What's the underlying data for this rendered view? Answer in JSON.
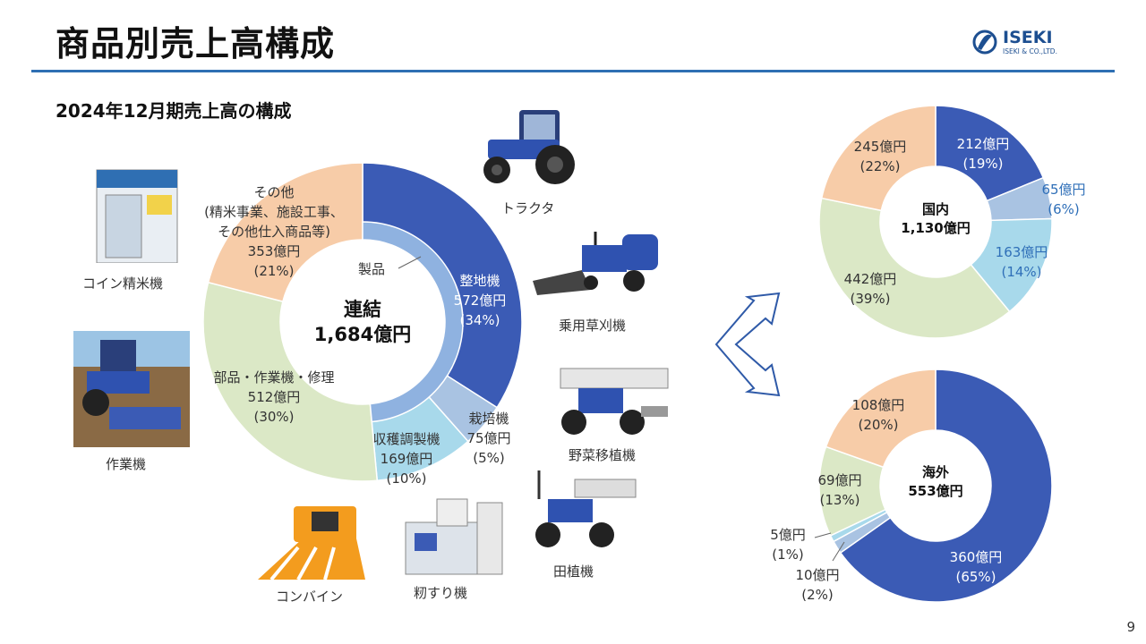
{
  "title": "商品別売上高構成",
  "subtitle": "2024年12月期売上高の構成",
  "logo": {
    "name": "ISEKI",
    "sub": "ISEKI & CO.,LTD."
  },
  "page_number": "9",
  "colors": {
    "dark_blue": "#3b5bb5",
    "light_blue": "#a9c3e2",
    "cyan": "#a8d9eb",
    "green": "#dbe8c6",
    "peach": "#f7cca8",
    "inner_ring": "#8fb2e0",
    "title_rule": "#2e6fb3"
  },
  "chart_data": [
    {
      "type": "donut",
      "id": "consolidated",
      "center": [
        "連結",
        "1,684億円"
      ],
      "segments": [
        {
          "name": "整地機",
          "value": 572,
          "pct": "34%",
          "amount_label": "572億円",
          "pct_label": "(34%)"
        },
        {
          "name": "栽培機",
          "value": 75,
          "pct": "5%",
          "amount_label": "75億円",
          "pct_label": "(5%)"
        },
        {
          "name": "収穫調製機",
          "value": 169,
          "pct": "10%",
          "amount_label": "169億円",
          "pct_label": "(10%)"
        },
        {
          "name": "部品・作業機・修理",
          "value": 512,
          "pct": "30%",
          "amount_label": "512億円",
          "pct_label": "(30%)"
        },
        {
          "name": "その他",
          "sub": [
            "(精米事業、施設工事、",
            "その他仕入商品等)"
          ],
          "value": 353,
          "pct": "21%",
          "amount_label": "353億円",
          "pct_label": "(21%)"
        }
      ],
      "inner_ring_label": "製品"
    },
    {
      "type": "donut",
      "id": "domestic",
      "center": [
        "国内",
        "1,130億円"
      ],
      "segments": [
        {
          "value": 212,
          "amount_label": "212億円",
          "pct_label": "(19%)"
        },
        {
          "value": 65,
          "amount_label": "65億円",
          "pct_label": "(6%)"
        },
        {
          "value": 163,
          "amount_label": "163億円",
          "pct_label": "(14%)"
        },
        {
          "value": 442,
          "amount_label": "442億円",
          "pct_label": "(39%)"
        },
        {
          "value": 245,
          "amount_label": "245億円",
          "pct_label": "(22%)"
        }
      ]
    },
    {
      "type": "donut",
      "id": "overseas",
      "center": [
        "海外",
        "553億円"
      ],
      "segments": [
        {
          "value": 360,
          "amount_label": "360億円",
          "pct_label": "(65%)"
        },
        {
          "value": 10,
          "amount_label": "10億円",
          "pct_label": "(2%)"
        },
        {
          "value": 5,
          "amount_label": "5億円",
          "pct_label": "(1%)"
        },
        {
          "value": 69,
          "amount_label": "69億円",
          "pct_label": "(13%)"
        },
        {
          "value": 108,
          "amount_label": "108億円",
          "pct_label": "(20%)"
        }
      ]
    }
  ],
  "products": {
    "tractor": "トラクタ",
    "mower": "乗用草刈機",
    "vegetable_transplanter": "野菜移植機",
    "rice_transplanter": "田植機",
    "huller": "籾すり機",
    "combine": "コンバイン",
    "implement": "作業機",
    "coin_rice_mill": "コイン精米機"
  }
}
